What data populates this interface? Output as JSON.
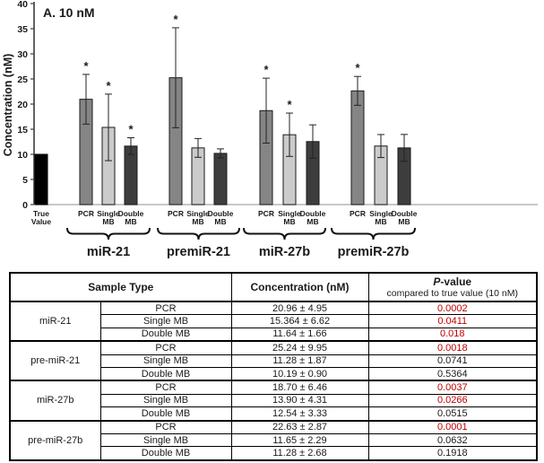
{
  "figure": {
    "panel_title": "A. 10 nM"
  },
  "chart_data": {
    "type": "bar",
    "title": "A. 10 nM",
    "xlabel": "",
    "ylabel": "Concentration (nM)",
    "ylim": [
      0,
      40
    ],
    "ytick_step": 5,
    "yticks": [
      0,
      5,
      10,
      15,
      20,
      25,
      30,
      35,
      40
    ],
    "grid": false,
    "legend": "none",
    "significance_marker": "*",
    "bar_colors": {
      "true_value": "#000000",
      "PCR": "#858585",
      "Single MB": "#cbcbcb",
      "Double MB": "#3d3d3d"
    },
    "bar_edge_color": "#1a1a1a",
    "true_value_bar": {
      "label_lines": [
        "True",
        "Value"
      ],
      "value": 10
    },
    "method_label_lines": [
      [
        "PCR"
      ],
      [
        "Single",
        "MB"
      ],
      [
        "Double",
        "MB"
      ]
    ],
    "groups": [
      {
        "label": "miR-21",
        "bars": [
          {
            "method": "PCR",
            "value": 20.96,
            "error": 4.95,
            "significant": true
          },
          {
            "method": "Single MB",
            "value": 15.364,
            "error": 6.62,
            "significant": true
          },
          {
            "method": "Double MB",
            "value": 11.64,
            "error": 1.66,
            "significant": true
          }
        ]
      },
      {
        "label": "premiR-21",
        "bars": [
          {
            "method": "PCR",
            "value": 25.24,
            "error": 9.95,
            "significant": true
          },
          {
            "method": "Single MB",
            "value": 11.28,
            "error": 1.87,
            "significant": false
          },
          {
            "method": "Double MB",
            "value": 10.19,
            "error": 0.9,
            "significant": false
          }
        ]
      },
      {
        "label": "miR-27b",
        "bars": [
          {
            "method": "PCR",
            "value": 18.7,
            "error": 6.46,
            "significant": true
          },
          {
            "method": "Single MB",
            "value": 13.9,
            "error": 4.31,
            "significant": true
          },
          {
            "method": "Double MB",
            "value": 12.54,
            "error": 3.33,
            "significant": false
          }
        ]
      },
      {
        "label": "premiR-27b",
        "bars": [
          {
            "method": "PCR",
            "value": 22.63,
            "error": 2.87,
            "significant": true
          },
          {
            "method": "Single MB",
            "value": 11.65,
            "error": 2.29,
            "significant": false
          },
          {
            "method": "Double MB",
            "value": 11.28,
            "error": 2.68,
            "significant": false
          }
        ]
      }
    ]
  },
  "table": {
    "headers": {
      "sample_type": "Sample Type",
      "concentration": "Concentration (nM)",
      "pvalue_italic": "P",
      "pvalue_suffix": "-value",
      "pvalue_subtitle": "compared to true value (10 nM)"
    },
    "colors": {
      "significant": "#c00000",
      "normal": "#1a1a1a"
    },
    "groups": [
      {
        "name": "miR-21",
        "rows": [
          {
            "method": "PCR",
            "concentration": "20.96 ± 4.95",
            "pvalue": "0.0002",
            "significant": true
          },
          {
            "method": "Single MB",
            "concentration": "15.364 ± 6.62",
            "pvalue": "0.0411",
            "significant": true
          },
          {
            "method": "Double MB",
            "concentration": "11.64 ± 1.66",
            "pvalue": "0.018",
            "significant": true
          }
        ]
      },
      {
        "name": "pre-miR-21",
        "rows": [
          {
            "method": "PCR",
            "concentration": "25.24 ± 9.95",
            "pvalue": "0.0018",
            "significant": true
          },
          {
            "method": "Single MB",
            "concentration": "11.28 ± 1.87",
            "pvalue": "0.0741",
            "significant": false
          },
          {
            "method": "Double MB",
            "concentration": "10.19 ± 0.90",
            "pvalue": "0.5364",
            "significant": false
          }
        ]
      },
      {
        "name": "miR-27b",
        "rows": [
          {
            "method": "PCR",
            "concentration": "18.70 ± 6.46",
            "pvalue": "0.0037",
            "significant": true
          },
          {
            "method": "Single MB",
            "concentration": "13.90 ± 4.31",
            "pvalue": "0.0266",
            "significant": true
          },
          {
            "method": "Double MB",
            "concentration": "12.54 ± 3.33",
            "pvalue": "0.0515",
            "significant": false
          }
        ]
      },
      {
        "name": "pre-miR-27b",
        "rows": [
          {
            "method": "PCR",
            "concentration": "22.63 ± 2.87",
            "pvalue": "0.0001",
            "significant": true
          },
          {
            "method": "Single MB",
            "concentration": "11.65 ± 2.29",
            "pvalue": "0.0632",
            "significant": false
          },
          {
            "method": "Double MB",
            "concentration": "11.28 ± 2.68",
            "pvalue": "0.1918",
            "significant": false
          }
        ]
      }
    ]
  }
}
